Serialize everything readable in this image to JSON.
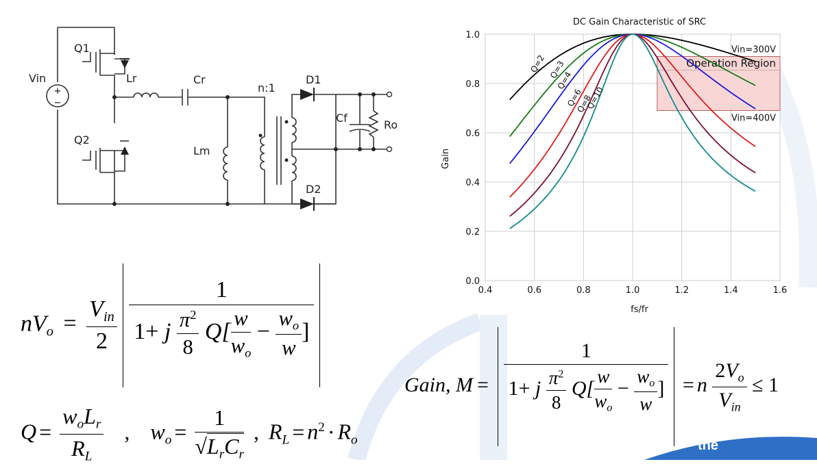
{
  "circuit": {
    "labels": {
      "vin": "Vin",
      "q1": "Q1",
      "q2": "Q2",
      "lr": "Lr",
      "cr": "Cr",
      "lm": "Lm",
      "ratio": "n:1",
      "d1": "D1",
      "d2": "D2",
      "cf": "Cf",
      "ro": "Ro",
      "plus": "+",
      "minus": "−"
    }
  },
  "chart_data": {
    "type": "line",
    "title": "DC Gain Characteristic of SRC",
    "xlabel": "fs/fr",
    "ylabel": "Gain",
    "xlim": [
      0.4,
      1.6
    ],
    "ylim": [
      0.0,
      1.0
    ],
    "xticks": [
      "0.4",
      "0.6",
      "0.8",
      "1.0",
      "1.2",
      "1.4",
      "1.6"
    ],
    "yticks": [
      "0.0",
      "0.2",
      "0.4",
      "0.6",
      "0.8",
      "1.0"
    ],
    "grid": true,
    "x_range_curves": [
      0.5,
      1.5
    ],
    "series": [
      {
        "name": "Q=2",
        "Q": 2,
        "color": "#000000"
      },
      {
        "name": "Q=3",
        "Q": 3,
        "color": "#1a7a1a"
      },
      {
        "name": "Q=4",
        "Q": 4,
        "color": "#1a1adb"
      },
      {
        "name": "Q=6",
        "Q": 6,
        "color": "#e01b1b"
      },
      {
        "name": "Q=8",
        "Q": 8,
        "color": "#7a1030"
      },
      {
        "name": "Q=10",
        "Q": 10,
        "color": "#138a8a"
      }
    ],
    "annotations": {
      "vin_high": "Vin=300V",
      "vin_low": "Vin=400V",
      "region": "Operation Region",
      "region_gain_top": 0.91,
      "region_gain_bottom": 0.69,
      "region_x_start": 1.1,
      "region_color": "#f8d6d6"
    }
  },
  "equations": {
    "eq1": {
      "lhs_n": "n",
      "lhs_v": "V",
      "lhs_sub": "o",
      "eq": "=",
      "vin_v": "V",
      "vin_sub": "in",
      "two": "2",
      "one": "1",
      "one_plus": "1+",
      "j": "j",
      "pi": "π",
      "sq": "2",
      "eight": "8",
      "Q": "Q[",
      "w": "w",
      "wo_w": "w",
      "wo_sub": "o",
      "minus": "−",
      "close": "]"
    },
    "eq2": {
      "Q": "Q",
      "eq": "=",
      "wo": "w",
      "o": "o",
      "L": "L",
      "r": "r",
      "R": "R",
      "Lsub": "L",
      "comma": ",",
      "w_o": "w",
      "one": "1",
      "C": "C",
      "comma2": ",",
      "RL": "R",
      "L2": "L",
      "n": "n",
      "sq": "2",
      "dot": "·",
      "Ro": "R",
      "o2": "o"
    },
    "eq3": {
      "gain": "Gain, M",
      "eq": "=",
      "eq2": "=",
      "n": "n",
      "two": "2",
      "V": "V",
      "o": "o",
      "Vin": "V",
      "in": "in",
      "le": "≤ 1"
    }
  },
  "brand": {
    "text": "the"
  },
  "colors": {
    "accent_blue": "#2f6fc6",
    "watermark": "#dbe7f5"
  }
}
